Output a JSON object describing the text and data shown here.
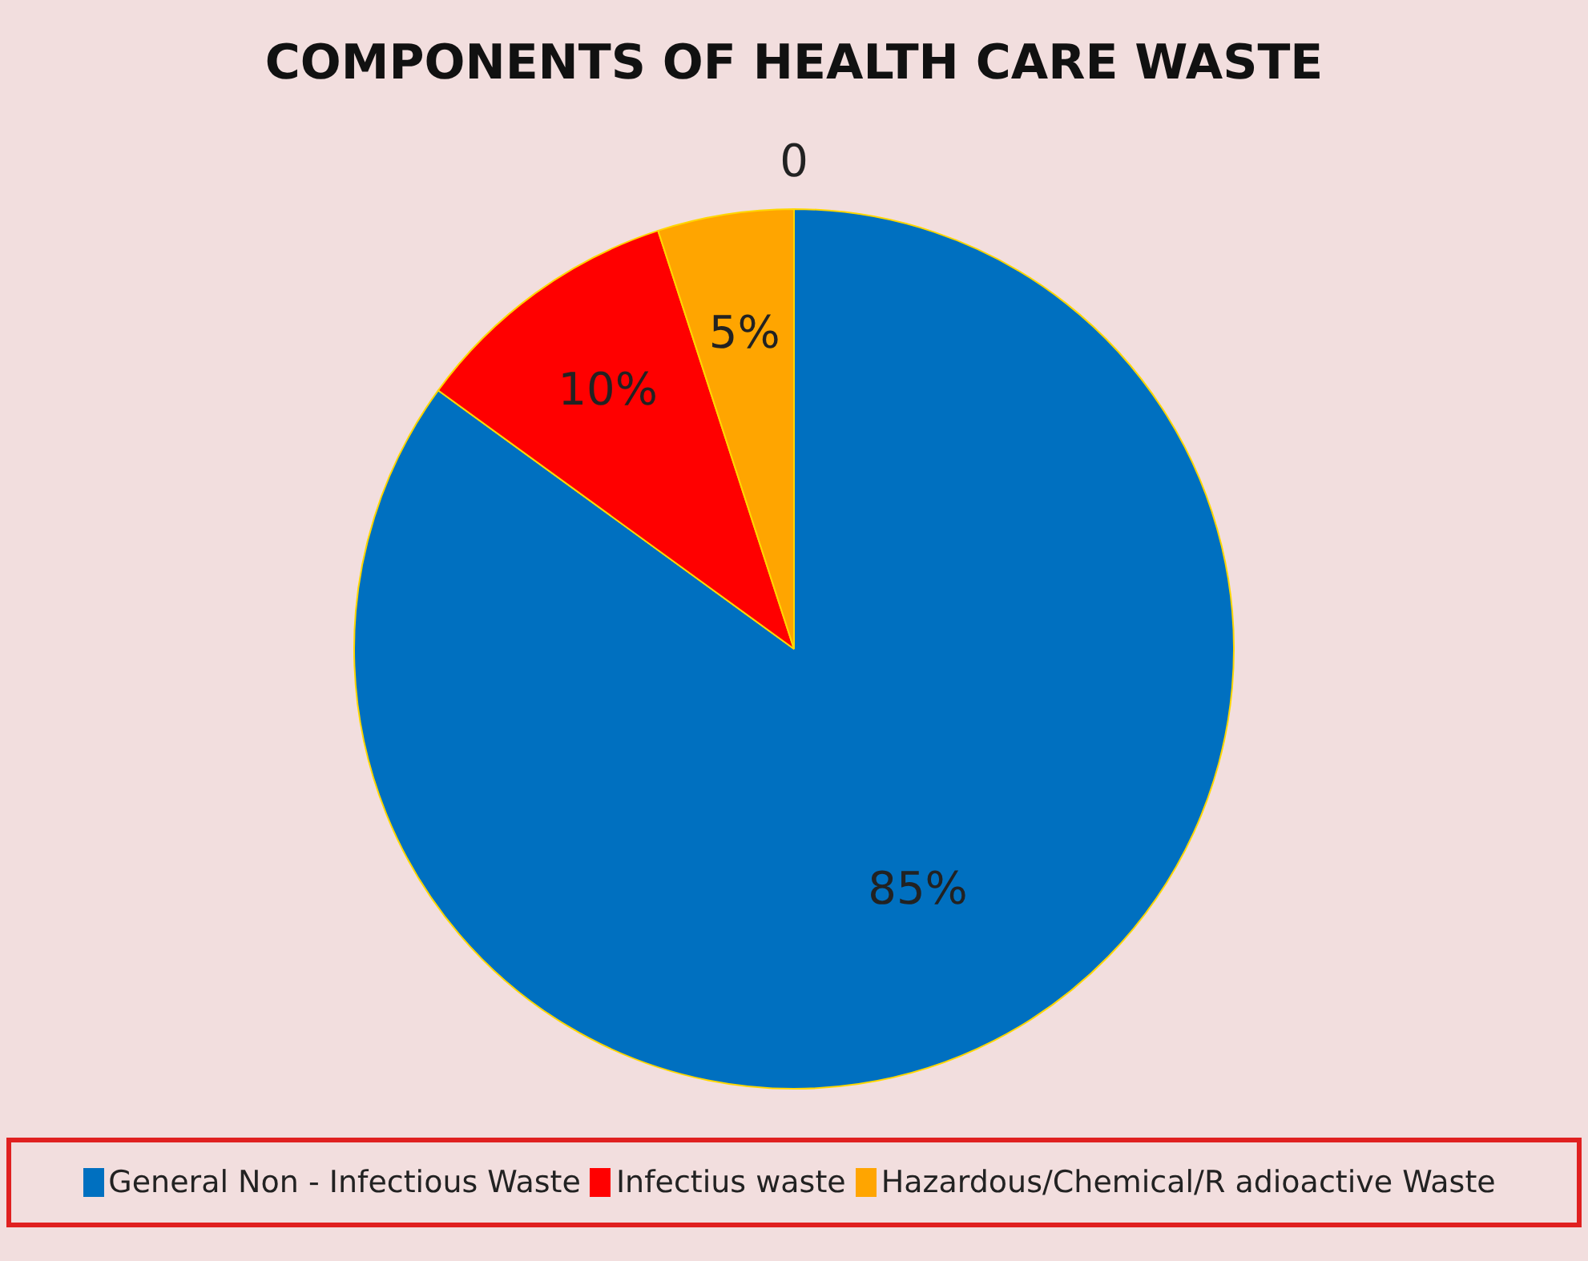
{
  "chart_data": {
    "type": "pie",
    "title": "COMPONENTS OF HEALTH CARE WASTE",
    "categories": [
      "General Non - Infectious Waste",
      "Infectius waste",
      "Hazardous/Chemical/R adioactive Waste"
    ],
    "values": [
      85,
      10,
      5
    ],
    "colors": [
      "#0070c0",
      "#ff0000",
      "#ffa500"
    ],
    "value_labels": [
      "85%",
      "10%",
      "5%"
    ],
    "annotations": [
      "0"
    ],
    "legend": "bottom"
  }
}
